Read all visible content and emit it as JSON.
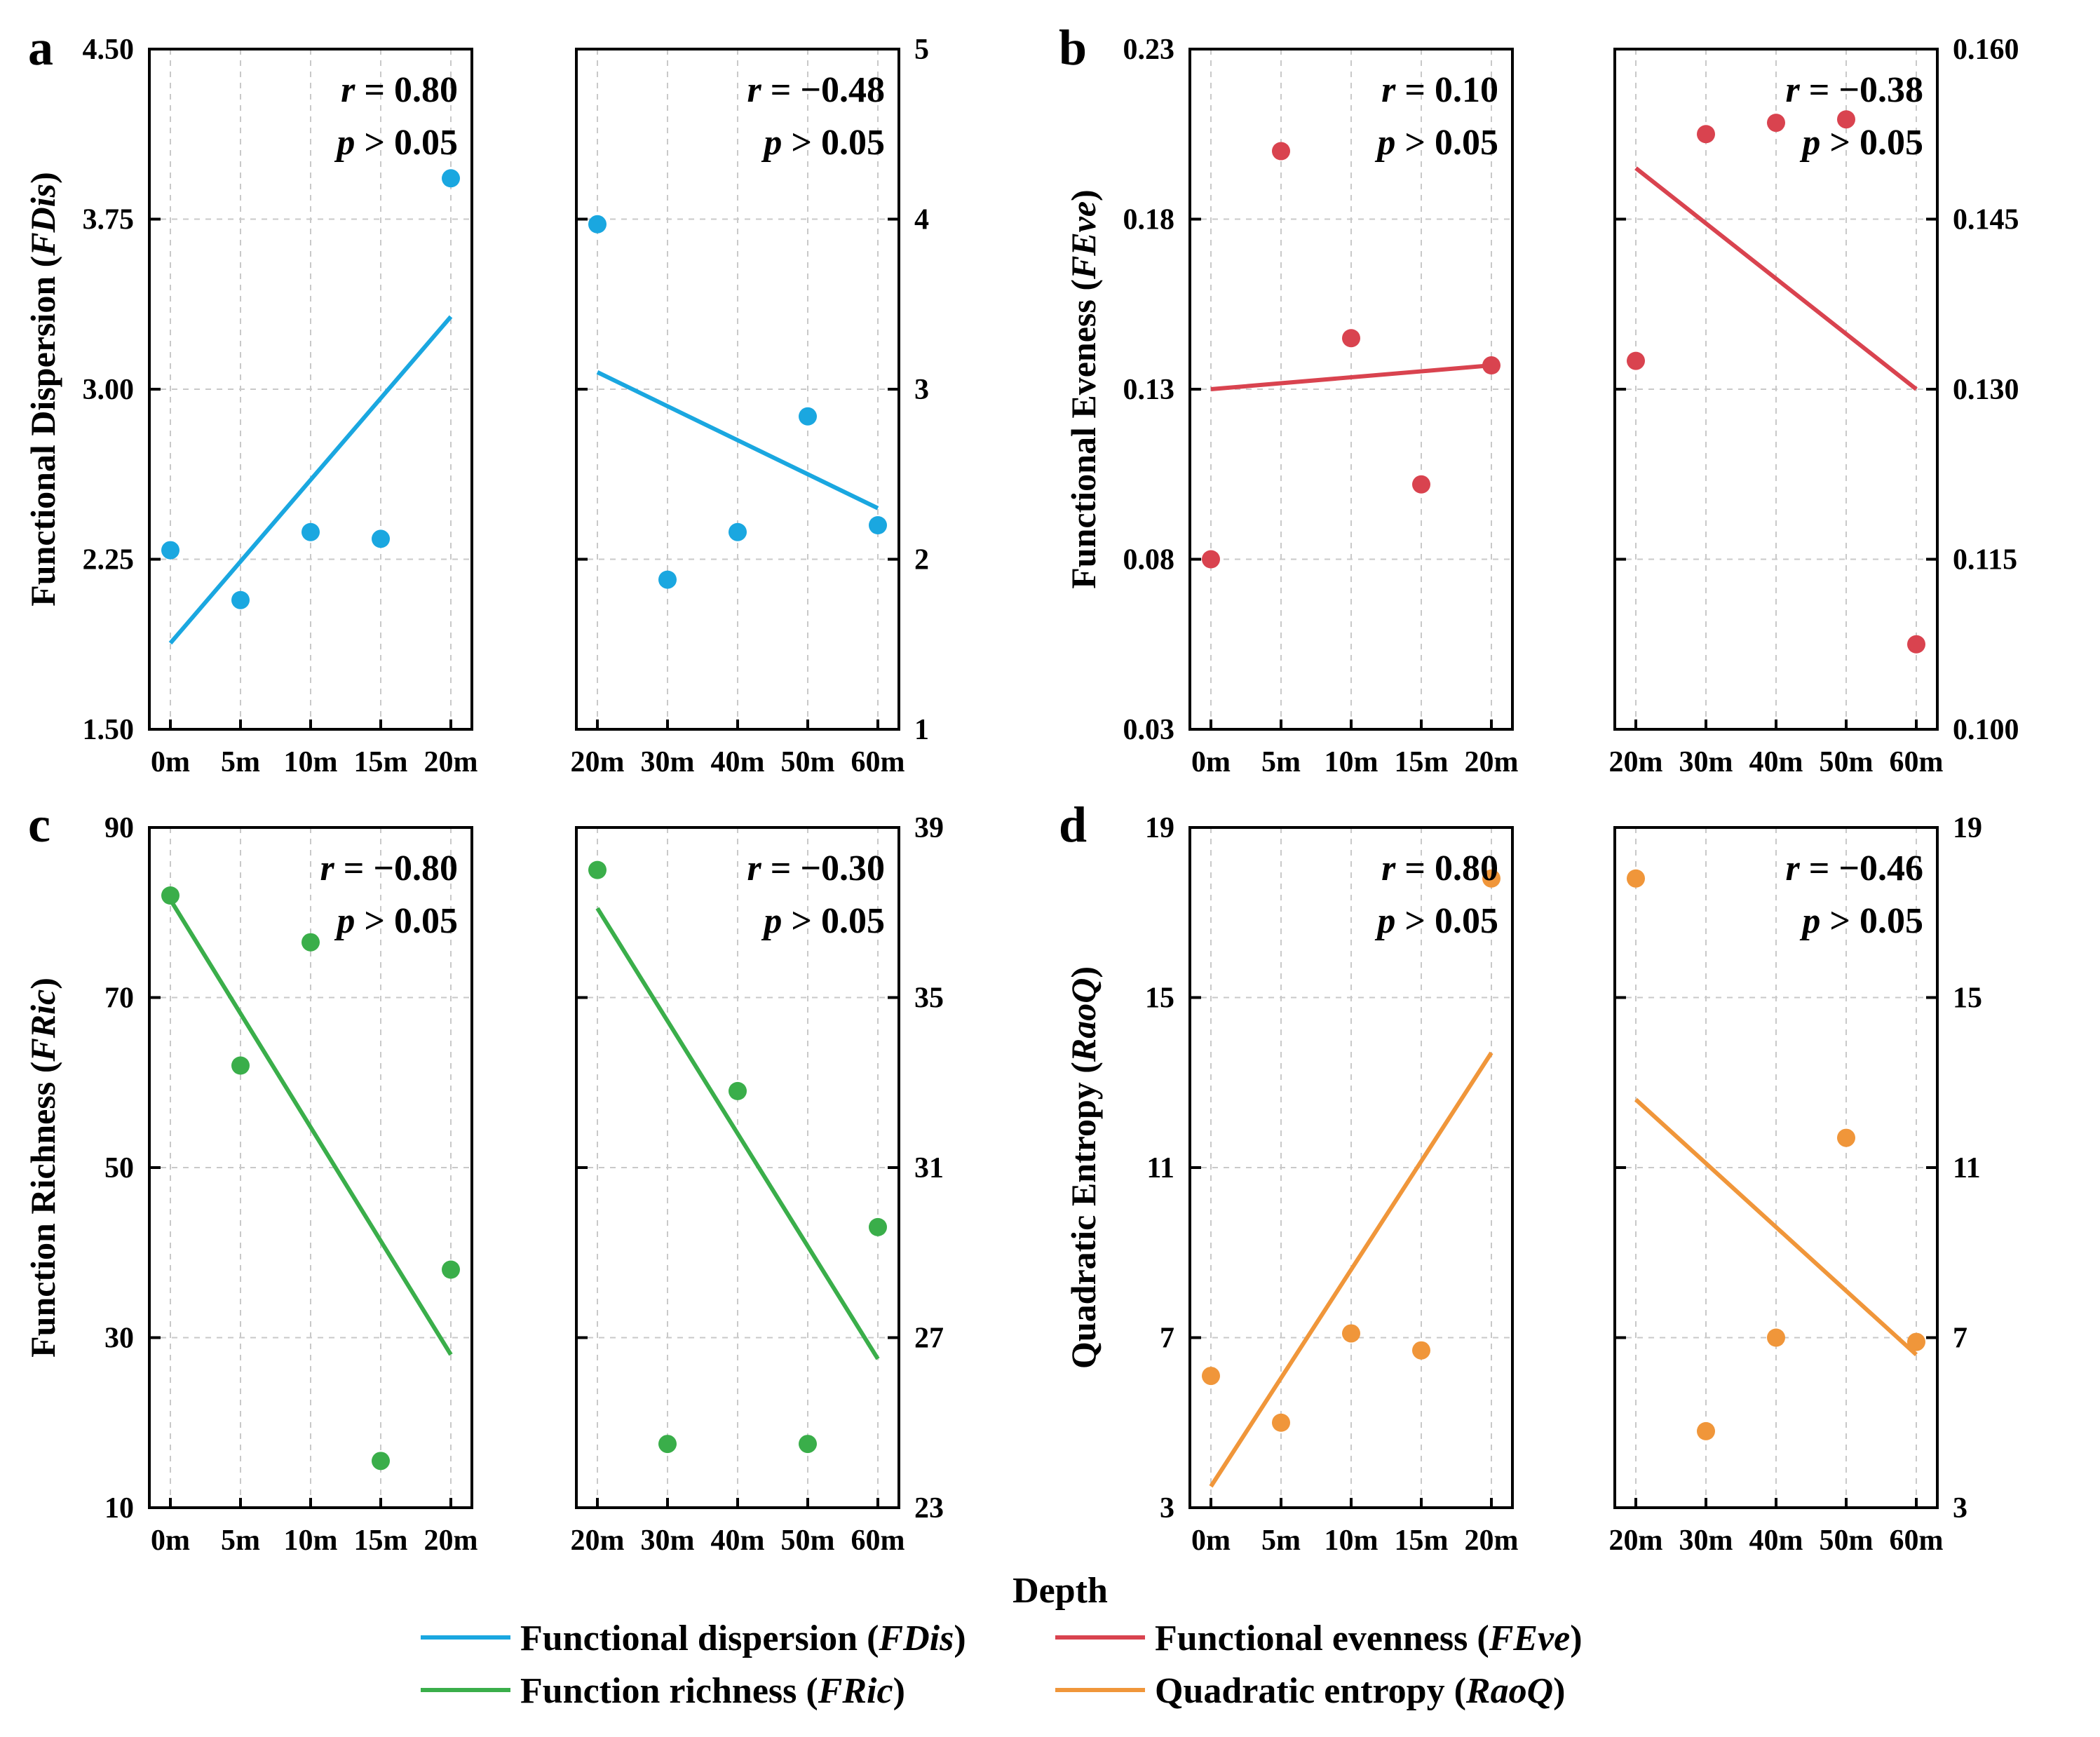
{
  "figure": {
    "x_axis_title": "Depth",
    "legend": [
      {
        "label_pre": "Functional dispersion (",
        "label_it": "FDis",
        "label_post": ")",
        "color": "#1aa7e0"
      },
      {
        "label_pre": "Functional evenness (",
        "label_it": "FEve",
        "label_post": ")",
        "color": "#d9434f"
      },
      {
        "label_pre": "Function richness (",
        "label_it": "FRic",
        "label_post": ")",
        "color": "#3aae4a"
      },
      {
        "label_pre": "Quadratic entropy (",
        "label_it": "RaoQ",
        "label_post": ")",
        "color": "#f0963a"
      }
    ]
  },
  "chart_data": [
    {
      "id": "a",
      "letter": "a",
      "type": "scatter",
      "color": "#1aa7e0",
      "ylabel_pre": "Functional Dispersion (",
      "ylabel_it": "FDis",
      "ylabel_post": ")",
      "left": {
        "categories": [
          "0m",
          "5m",
          "10m",
          "15m",
          "20m"
        ],
        "x": [
          0,
          5,
          10,
          15,
          20
        ],
        "y": [
          2.29,
          2.07,
          2.37,
          2.34,
          3.93
        ],
        "fit": [
          [
            0,
            1.88
          ],
          [
            20,
            3.32
          ]
        ],
        "ylim": [
          1.5,
          4.5
        ],
        "yticks": [
          "1.50",
          "2.25",
          "3.00",
          "3.75",
          "4.50"
        ],
        "r_label": "r",
        "r_value": "= 0.80",
        "p_label": "p",
        "p_value": "> 0.05"
      },
      "right": {
        "categories": [
          "20m",
          "30m",
          "40m",
          "50m",
          "60m"
        ],
        "x": [
          20,
          30,
          40,
          50,
          60
        ],
        "y": [
          3.97,
          1.88,
          2.16,
          2.84,
          2.2
        ],
        "fit": [
          [
            20,
            3.1
          ],
          [
            60,
            2.3
          ]
        ],
        "ylim": [
          1,
          5
        ],
        "yticks": [
          "1",
          "2",
          "3",
          "4",
          "5"
        ],
        "r_label": "r",
        "r_value": "= −0.48",
        "p_label": "p",
        "p_value": "> 0.05"
      }
    },
    {
      "id": "b",
      "letter": "b",
      "type": "scatter",
      "color": "#d9434f",
      "ylabel_pre": "Functional Eveness (",
      "ylabel_it": "FEve",
      "ylabel_post": ")",
      "left": {
        "categories": [
          "0m",
          "5m",
          "10m",
          "15m",
          "20m"
        ],
        "x": [
          0,
          5,
          10,
          15,
          20
        ],
        "y": [
          0.08,
          0.2,
          0.145,
          0.102,
          0.137
        ],
        "fit": [
          [
            0,
            0.13
          ],
          [
            20,
            0.137
          ]
        ],
        "ylim": [
          0.03,
          0.23
        ],
        "yticks": [
          "0.03",
          "0.08",
          "0.13",
          "0.18",
          "0.23"
        ],
        "r_label": "r",
        "r_value": "= 0.10",
        "p_label": "p",
        "p_value": "> 0.05"
      },
      "right": {
        "categories": [
          "20m",
          "30m",
          "40m",
          "50m",
          "60m"
        ],
        "x": [
          20,
          30,
          40,
          50,
          60
        ],
        "y": [
          0.1325,
          0.1525,
          0.1535,
          0.1538,
          0.1075
        ],
        "fit": [
          [
            20,
            0.1495
          ],
          [
            60,
            0.13
          ]
        ],
        "ylim": [
          0.1,
          0.16
        ],
        "yticks": [
          "0.100",
          "0.115",
          "0.130",
          "0.145",
          "0.160"
        ],
        "r_label": "r",
        "r_value": "= −0.38",
        "p_label": "p",
        "p_value": "> 0.05"
      }
    },
    {
      "id": "c",
      "letter": "c",
      "type": "scatter",
      "color": "#3aae4a",
      "ylabel_pre": "Function Richness (",
      "ylabel_it": "FRic",
      "ylabel_post": ")",
      "left": {
        "categories": [
          "0m",
          "5m",
          "10m",
          "15m",
          "20m"
        ],
        "x": [
          0,
          5,
          10,
          15,
          20
        ],
        "y": [
          82,
          62,
          76.5,
          15.5,
          38
        ],
        "fit": [
          [
            0,
            81.5
          ],
          [
            20,
            28
          ]
        ],
        "ylim": [
          10,
          90
        ],
        "yticks": [
          "10",
          "30",
          "50",
          "70",
          "90"
        ],
        "r_label": "r",
        "r_value": "= −0.80",
        "p_label": "p",
        "p_value": "> 0.05"
      },
      "right": {
        "categories": [
          "20m",
          "30m",
          "40m",
          "50m",
          "60m"
        ],
        "x": [
          20,
          30,
          40,
          50,
          60
        ],
        "y": [
          38,
          24.5,
          32.8,
          24.5,
          29.6
        ],
        "fit": [
          [
            20,
            37.1
          ],
          [
            60,
            26.5
          ]
        ],
        "ylim": [
          23,
          39
        ],
        "yticks": [
          "23",
          "27",
          "31",
          "35",
          "39"
        ],
        "r_label": "r",
        "r_value": "= −0.30",
        "p_label": "p",
        "p_value": "> 0.05"
      }
    },
    {
      "id": "d",
      "letter": "d",
      "type": "scatter",
      "color": "#f0963a",
      "ylabel_pre": "Quadratic Entropy (",
      "ylabel_it": "RaoQ",
      "ylabel_post": ")",
      "left": {
        "categories": [
          "0m",
          "5m",
          "10m",
          "15m",
          "20m"
        ],
        "x": [
          0,
          5,
          10,
          15,
          20
        ],
        "y": [
          6.1,
          5.0,
          7.1,
          6.7,
          17.8
        ],
        "fit": [
          [
            0,
            3.5
          ],
          [
            20,
            13.7
          ]
        ],
        "ylim": [
          3,
          19
        ],
        "yticks": [
          "3",
          "7",
          "11",
          "15",
          "19"
        ],
        "r_label": "r",
        "r_value": "= 0.80",
        "p_label": "p",
        "p_value": "> 0.05"
      },
      "right": {
        "categories": [
          "20m",
          "30m",
          "40m",
          "50m",
          "60m"
        ],
        "x": [
          20,
          30,
          40,
          50,
          60
        ],
        "y": [
          17.8,
          4.8,
          7.0,
          11.7,
          6.9
        ],
        "fit": [
          [
            20,
            12.6
          ],
          [
            60,
            6.6
          ]
        ],
        "ylim": [
          3,
          19
        ],
        "yticks": [
          "3",
          "7",
          "11",
          "15",
          "19"
        ],
        "r_label": "r",
        "r_value": "= −0.46",
        "p_label": "p",
        "p_value": "> 0.05"
      }
    }
  ]
}
